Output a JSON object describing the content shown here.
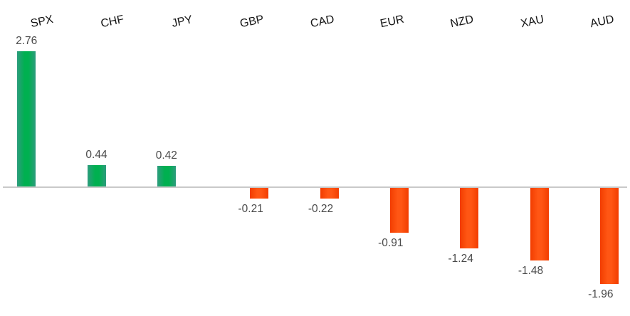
{
  "chart_data": {
    "type": "bar",
    "title": "",
    "xlabel": "",
    "ylabel": "",
    "categories": [
      "SPX",
      "CHF",
      "JPY",
      "GBP",
      "CAD",
      "EUR",
      "NZD",
      "XAU",
      "AUD"
    ],
    "values": [
      2.76,
      0.44,
      0.42,
      -0.21,
      -0.22,
      -0.91,
      -1.24,
      -1.48,
      -1.96
    ],
    "value_labels": [
      "2.76",
      "0.44",
      "0.42",
      "-0.21",
      "-0.22",
      "-0.91",
      "-1.24",
      "-1.48",
      "-1.96"
    ],
    "ylim": [
      -1.96,
      2.76
    ],
    "grid": false,
    "legend": false,
    "baseline_value": 0,
    "colors": {
      "background": "#ffffff",
      "positive_center": "#00b050",
      "positive_edge": "#2e9c7e",
      "negative_center": "#ff5614",
      "negative_edge": "#f23d00",
      "axis_line": "#c9c9c9",
      "category_label": "#141414",
      "value_label": "#4a4a4a"
    }
  }
}
